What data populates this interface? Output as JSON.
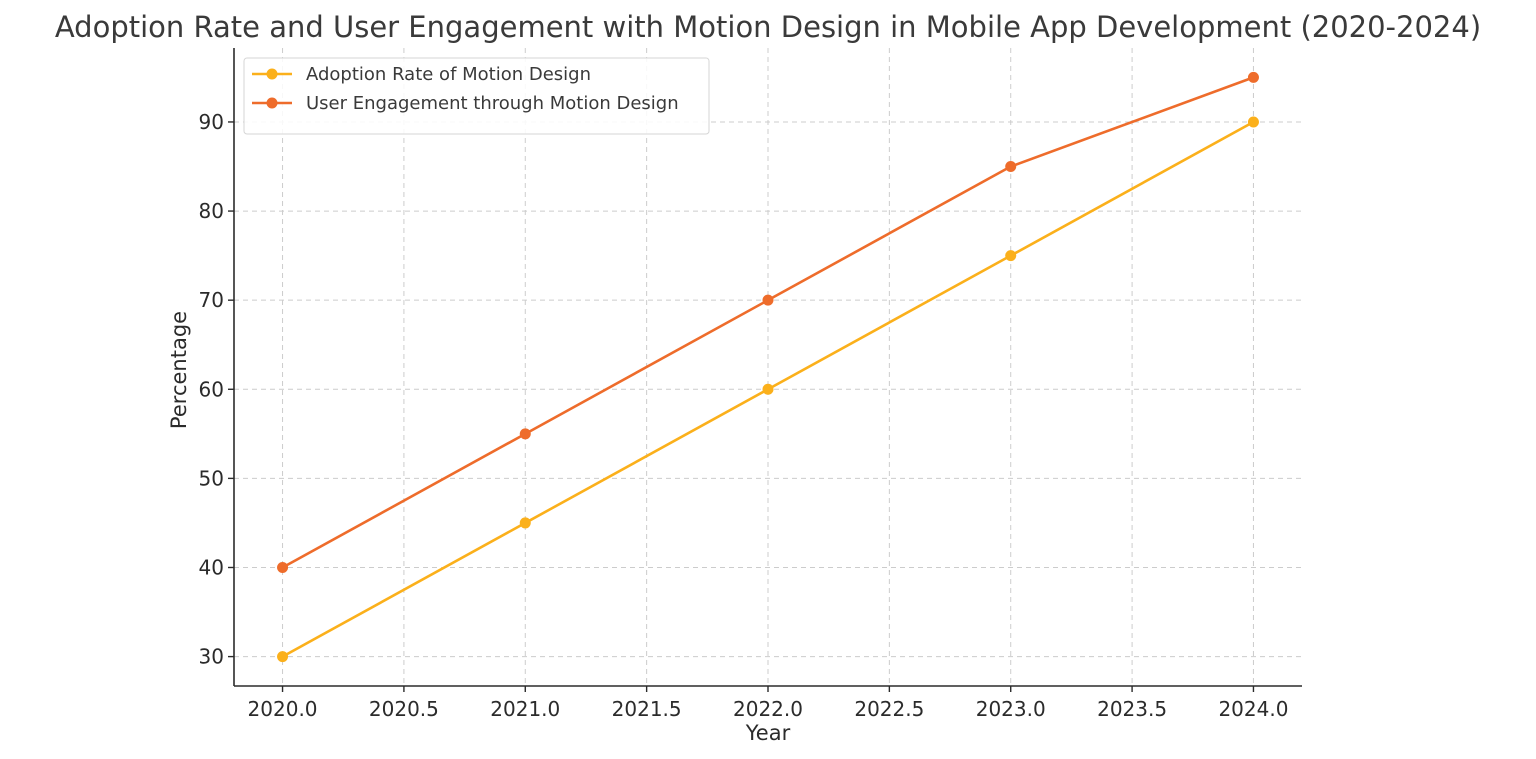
{
  "chart_data": {
    "type": "line",
    "title": "Adoption Rate and User Engagement with Motion Design in Mobile App Development (2020-2024)",
    "xlabel": "Year",
    "ylabel": "Percentage",
    "x": [
      2020,
      2021,
      2022,
      2023,
      2024
    ],
    "xlim": [
      2019.8,
      2024.2
    ],
    "ylim": [
      26.7,
      98.3
    ],
    "x_ticks": [
      2020.0,
      2020.5,
      2021.0,
      2021.5,
      2022.0,
      2022.5,
      2023.0,
      2023.5,
      2024.0
    ],
    "x_tick_labels": [
      "2020.0",
      "2020.5",
      "2021.0",
      "2021.5",
      "2022.0",
      "2022.5",
      "2023.0",
      "2023.5",
      "2024.0"
    ],
    "y_ticks": [
      30,
      40,
      50,
      60,
      70,
      80,
      90
    ],
    "y_tick_labels": [
      "30",
      "40",
      "50",
      "60",
      "70",
      "80",
      "90"
    ],
    "grid": true,
    "legend_position": "upper-left",
    "series": [
      {
        "name": "Adoption Rate of Motion Design",
        "color": "#FBB01B",
        "marker": "circle",
        "values": [
          30,
          45,
          60,
          75,
          90
        ]
      },
      {
        "name": "User Engagement through Motion Design",
        "color": "#EE6C2B",
        "marker": "circle",
        "values": [
          40,
          55,
          70,
          85,
          95
        ]
      }
    ]
  }
}
